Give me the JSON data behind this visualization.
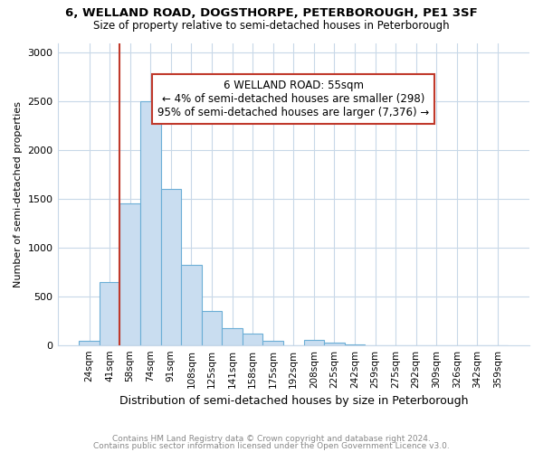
{
  "title1": "6, WELLAND ROAD, DOGSTHORPE, PETERBOROUGH, PE1 3SF",
  "title2": "Size of property relative to semi-detached houses in Peterborough",
  "xlabel": "Distribution of semi-detached houses by size in Peterborough",
  "ylabel": "Number of semi-detached properties",
  "categories": [
    "24sqm",
    "41sqm",
    "58sqm",
    "74sqm",
    "91sqm",
    "108sqm",
    "125sqm",
    "141sqm",
    "158sqm",
    "175sqm",
    "192sqm",
    "208sqm",
    "225sqm",
    "242sqm",
    "259sqm",
    "275sqm",
    "292sqm",
    "309sqm",
    "326sqm",
    "342sqm",
    "359sqm"
  ],
  "values": [
    45,
    650,
    1450,
    2500,
    1600,
    825,
    350,
    175,
    115,
    45,
    0,
    50,
    25,
    10,
    0,
    0,
    0,
    0,
    0,
    0,
    0
  ],
  "bar_color": "#c9ddf0",
  "bar_edge_color": "#6baed6",
  "vline_index": 2,
  "vline_color": "#c0392b",
  "annotation_text": "6 WELLAND ROAD: 55sqm\n← 4% of semi-detached houses are smaller (298)\n95% of semi-detached houses are larger (7,376) →",
  "annotation_box_color": "white",
  "annotation_box_edge_color": "#c0392b",
  "ylim": [
    0,
    3100
  ],
  "yticks": [
    0,
    500,
    1000,
    1500,
    2000,
    2500,
    3000
  ],
  "footer1": "Contains HM Land Registry data © Crown copyright and database right 2024.",
  "footer2": "Contains public sector information licensed under the Open Government Licence v3.0.",
  "bg_color": "#ffffff",
  "plot_bg_color": "#ffffff",
  "grid_color": "#c8d8e8"
}
